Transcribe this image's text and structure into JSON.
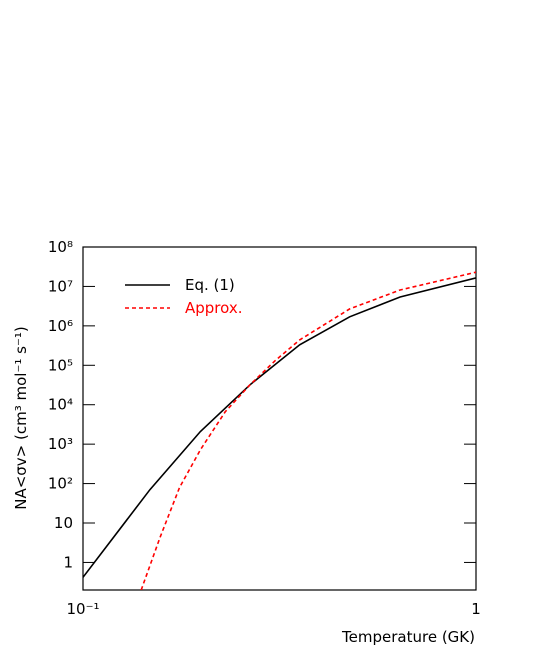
{
  "chart_data": {
    "type": "line",
    "xlabel": "Temperature (GK)",
    "ylabel": "NA<σv> (cm³ mol⁻¹ s⁻¹)",
    "xscale": "log",
    "yscale": "log",
    "xlim": [
      0.1,
      1
    ],
    "ylim": [
      0.2,
      100000000
    ],
    "xticks": [
      {
        "value": 0.1,
        "label": "10⁻¹"
      },
      1
    ],
    "yticks": [
      1,
      10,
      {
        "value": 100,
        "label": "10²"
      },
      {
        "value": 1000,
        "label": "10³"
      },
      {
        "value": 10000,
        "label": "10⁴"
      },
      {
        "value": 100000,
        "label": "10⁵"
      },
      {
        "value": 1000000,
        "label": "10⁶"
      },
      {
        "value": 10000000,
        "label": "10⁷"
      },
      {
        "value": 100000000,
        "label": "10⁸"
      }
    ],
    "legend": "upper left",
    "series": [
      {
        "name": "Eq. (1)",
        "color": "#000000",
        "dash": "solid",
        "x": [
          0.1,
          0.148,
          0.199,
          0.266,
          0.356,
          0.477,
          0.641,
          1
        ],
        "values": [
          0.42,
          70,
          2090,
          32000,
          330000,
          1700000,
          5400000,
          16500000
        ]
      },
      {
        "name": "Approx.",
        "color": "#ff0000",
        "dash": "dashed",
        "x": [
          0.1406,
          0.157,
          0.176,
          0.199,
          0.23,
          0.266,
          0.308,
          0.356,
          0.477,
          0.641,
          1
        ],
        "values": [
          0.2,
          4.3,
          79,
          720,
          6600,
          32000,
          130000,
          440000,
          2700000,
          8100000,
          23000000
        ]
      }
    ]
  }
}
